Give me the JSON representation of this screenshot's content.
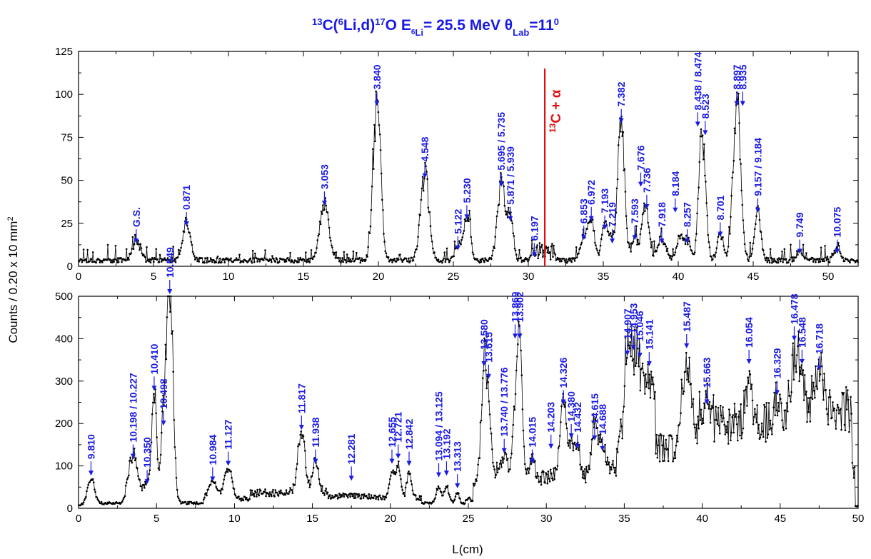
{
  "colors": {
    "title": "#1a1ae6",
    "labels": "#1a1ae6",
    "threshold": "#e01010",
    "data": "#000000"
  },
  "title": {
    "sup1": "13",
    "p1": "C(",
    "sup2": "6",
    "p2": "Li,d)",
    "sup3": "17",
    "p3": "O  E",
    "sub1": "6",
    "sub2": "Li",
    "p4": "= 25.5 MeV  θ",
    "sub3": "Lab",
    "p5": "=11",
    "sup4": "0"
  },
  "ylabel": {
    "main": "Counts / 0.20 x 10 mm",
    "sup": "2"
  },
  "xlabel": "L(cm)",
  "threshold": {
    "label_sup": "13",
    "label_main": "C + α",
    "x": 31.1
  },
  "chart_data": [
    {
      "type": "line",
      "panel": "top",
      "xlim": [
        0,
        52
      ],
      "ylim": [
        0,
        125
      ],
      "xticks": [
        "0",
        "5",
        "10",
        "15",
        "20",
        "25",
        "30",
        "35",
        "40",
        "45",
        "50"
      ],
      "yticks": [
        "0",
        "25",
        "50",
        "75",
        "100",
        "125"
      ],
      "baseline": 2,
      "peaks": [
        {
          "x": 3.85,
          "h": 12,
          "w": 0.25
        },
        {
          "x": 7.2,
          "h": 22,
          "w": 0.25
        },
        {
          "x": 16.4,
          "h": 33,
          "w": 0.3
        },
        {
          "x": 19.9,
          "h": 92,
          "w": 0.25
        },
        {
          "x": 23.1,
          "h": 50,
          "w": 0.28
        },
        {
          "x": 25.3,
          "h": 8,
          "w": 0.2
        },
        {
          "x": 25.9,
          "h": 26,
          "w": 0.22
        },
        {
          "x": 28.2,
          "h": 45,
          "w": 0.26
        },
        {
          "x": 28.8,
          "h": 25,
          "w": 0.2
        },
        {
          "x": 30.4,
          "h": 4,
          "w": 0.2
        },
        {
          "x": 33.7,
          "h": 14,
          "w": 0.22
        },
        {
          "x": 34.2,
          "h": 25,
          "w": 0.2
        },
        {
          "x": 35.1,
          "h": 20,
          "w": 0.2
        },
        {
          "x": 35.6,
          "h": 12,
          "w": 0.2
        },
        {
          "x": 36.2,
          "h": 82,
          "w": 0.22
        },
        {
          "x": 37.1,
          "h": 14,
          "w": 0.2
        },
        {
          "x": 37.8,
          "h": 32,
          "w": 0.22
        },
        {
          "x": 38.9,
          "h": 12,
          "w": 0.3
        },
        {
          "x": 40.1,
          "h": 15,
          "w": 0.2
        },
        {
          "x": 40.6,
          "h": 12,
          "w": 0.2
        },
        {
          "x": 41.6,
          "h": 75,
          "w": 0.22
        },
        {
          "x": 42.8,
          "h": 16,
          "w": 0.2
        },
        {
          "x": 43.9,
          "h": 92,
          "w": 0.25
        },
        {
          "x": 45.3,
          "h": 30,
          "w": 0.2
        },
        {
          "x": 48.1,
          "h": 6,
          "w": 0.2
        },
        {
          "x": 50.6,
          "h": 6,
          "w": 0.2
        }
      ],
      "annotations": [
        {
          "text": "G.S.",
          "x": 3.85,
          "y": 12
        },
        {
          "text": "0.871",
          "x": 7.2,
          "y": 22
        },
        {
          "text": "3.053",
          "x": 16.4,
          "y": 34
        },
        {
          "text": "3.840",
          "x": 19.9,
          "y": 92
        },
        {
          "text": "4.548",
          "x": 23.1,
          "y": 50
        },
        {
          "text": "5.122",
          "x": 25.3,
          "y": 8
        },
        {
          "text": "5.230",
          "x": 25.9,
          "y": 26
        },
        {
          "text": "5.695 / 5.735",
          "x": 28.2,
          "y": 45
        },
        {
          "text": "5.871 / 5.939",
          "x": 28.8,
          "y": 25
        },
        {
          "text": "6.197",
          "x": 30.4,
          "y": 4
        },
        {
          "text": "6.853",
          "x": 33.7,
          "y": 14
        },
        {
          "text": "6.972",
          "x": 34.2,
          "y": 25
        },
        {
          "text": "7.193",
          "x": 35.1,
          "y": 20
        },
        {
          "text": "7.219",
          "x": 35.6,
          "y": 12
        },
        {
          "text": "7.382",
          "x": 36.2,
          "y": 82
        },
        {
          "text": "7.593",
          "x": 37.1,
          "y": 14
        },
        {
          "text": "7.676",
          "x": 37.5,
          "y": 45
        },
        {
          "text": "7.736",
          "x": 37.9,
          "y": 32
        },
        {
          "text": "7.918",
          "x": 38.9,
          "y": 12
        },
        {
          "text": "8.184",
          "x": 39.8,
          "y": 30
        },
        {
          "text": "8.257",
          "x": 40.6,
          "y": 12
        },
        {
          "text": "8.438 / 8.474",
          "x": 41.3,
          "y": 80
        },
        {
          "text": "8.523",
          "x": 41.8,
          "y": 75
        },
        {
          "text": "8.701",
          "x": 42.8,
          "y": 16
        },
        {
          "text": "8.897",
          "x": 43.9,
          "y": 92
        },
        {
          "text": "8.935",
          "x": 44.3,
          "y": 92
        },
        {
          "text": "9.157 / 9.184",
          "x": 45.3,
          "y": 30
        },
        {
          "text": "9.749",
          "x": 48.1,
          "y": 6
        },
        {
          "text": "10.075",
          "x": 50.6,
          "y": 6
        }
      ]
    },
    {
      "type": "line",
      "panel": "bottom",
      "xlim": [
        0,
        50
      ],
      "ylim": [
        0,
        500
      ],
      "xticks": [
        "0",
        "5",
        "10",
        "15",
        "20",
        "25",
        "30",
        "35",
        "40",
        "45",
        "50"
      ],
      "yticks": [
        "0",
        "100",
        "200",
        "300",
        "400",
        "500"
      ],
      "peaks": [
        {
          "x": 0.8,
          "h": 58,
          "w": 0.22
        },
        {
          "x": 3.5,
          "h": 90,
          "w": 0.28
        },
        {
          "x": 4.4,
          "h": 25,
          "w": 0.15
        },
        {
          "x": 4.85,
          "h": 255,
          "w": 0.15
        },
        {
          "x": 5.45,
          "h": 160,
          "w": 0.15
        },
        {
          "x": 5.85,
          "h": 520,
          "w": 0.2
        },
        {
          "x": 8.6,
          "h": 40,
          "w": 0.25
        },
        {
          "x": 9.6,
          "h": 70,
          "w": 0.25
        },
        {
          "x": 14.3,
          "h": 150,
          "w": 0.22
        },
        {
          "x": 15.2,
          "h": 65,
          "w": 0.2
        },
        {
          "x": 20.1,
          "h": 60,
          "w": 0.15
        },
        {
          "x": 20.5,
          "h": 80,
          "w": 0.15
        },
        {
          "x": 21.2,
          "h": 55,
          "w": 0.15
        },
        {
          "x": 23.1,
          "h": 40,
          "w": 0.15
        },
        {
          "x": 23.6,
          "h": 40,
          "w": 0.15
        },
        {
          "x": 24.3,
          "h": 25,
          "w": 0.12
        },
        {
          "x": 26.0,
          "h": 250,
          "w": 0.18
        },
        {
          "x": 26.3,
          "h": 130,
          "w": 0.15
        },
        {
          "x": 27.3,
          "h": 50,
          "w": 0.25
        },
        {
          "x": 28.0,
          "h": 150,
          "w": 0.15
        },
        {
          "x": 28.3,
          "h": 330,
          "w": 0.15
        },
        {
          "x": 29.1,
          "h": 40,
          "w": 0.2
        },
        {
          "x": 31.1,
          "h": 180,
          "w": 0.2
        },
        {
          "x": 31.6,
          "h": 70,
          "w": 0.15
        },
        {
          "x": 32.0,
          "h": 80,
          "w": 0.15
        },
        {
          "x": 33.1,
          "h": 110,
          "w": 0.2
        },
        {
          "x": 33.6,
          "h": 70,
          "w": 0.15
        },
        {
          "x": 35.2,
          "h": 140,
          "w": 0.2
        },
        {
          "x": 35.6,
          "h": 130,
          "w": 0.25
        },
        {
          "x": 36.0,
          "h": 90,
          "w": 0.2
        },
        {
          "x": 36.6,
          "h": 100,
          "w": 0.2
        },
        {
          "x": 39.0,
          "h": 170,
          "w": 0.25
        },
        {
          "x": 40.3,
          "h": 50,
          "w": 0.2
        },
        {
          "x": 43.0,
          "h": 100,
          "w": 0.2
        },
        {
          "x": 44.8,
          "h": 40,
          "w": 0.2
        },
        {
          "x": 45.9,
          "h": 140,
          "w": 0.2
        },
        {
          "x": 46.4,
          "h": 60,
          "w": 0.2
        },
        {
          "x": 47.5,
          "h": 80,
          "w": 0.25
        }
      ],
      "annotations": [
        {
          "text": "9.810",
          "x": 0.8,
          "y": 72
        },
        {
          "text": "10.198 / 10.227",
          "x": 3.5,
          "y": 112
        },
        {
          "text": "10.350",
          "x": 4.4,
          "y": 52
        },
        {
          "text": "10.410",
          "x": 4.85,
          "y": 272
        },
        {
          "text": "10.498",
          "x": 5.45,
          "y": 190
        },
        {
          "text": "10.549",
          "x": 5.85,
          "y": 500
        },
        {
          "text": "10.984",
          "x": 8.6,
          "y": 58
        },
        {
          "text": "11.127",
          "x": 9.6,
          "y": 95
        },
        {
          "text": "11.817",
          "x": 14.3,
          "y": 180
        },
        {
          "text": "11.938",
          "x": 15.2,
          "y": 100
        },
        {
          "text": "12.281",
          "x": 17.5,
          "y": 60
        },
        {
          "text": "12.655",
          "x": 20.1,
          "y": 100
        },
        {
          "text": "12.721",
          "x": 20.5,
          "y": 112
        },
        {
          "text": "12.842",
          "x": 21.2,
          "y": 95
        },
        {
          "text": "13.094 / 13.125",
          "x": 23.1,
          "y": 68
        },
        {
          "text": "13.192",
          "x": 23.6,
          "y": 72
        },
        {
          "text": "13.313",
          "x": 24.3,
          "y": 42
        },
        {
          "text": "13.580",
          "x": 26.0,
          "y": 330
        },
        {
          "text": "13.615",
          "x": 26.3,
          "y": 300
        },
        {
          "text": "13.740 / 13.776",
          "x": 27.3,
          "y": 125
        },
        {
          "text": "13.869",
          "x": 28.0,
          "y": 395
        },
        {
          "text": "13.902",
          "x": 28.3,
          "y": 395
        },
        {
          "text": "14.015",
          "x": 29.1,
          "y": 100
        },
        {
          "text": "14.203",
          "x": 30.3,
          "y": 135
        },
        {
          "text": "14.326",
          "x": 31.1,
          "y": 240
        },
        {
          "text": "14.380",
          "x": 31.6,
          "y": 160
        },
        {
          "text": "14.432",
          "x": 32.0,
          "y": 135
        },
        {
          "text": "14.615",
          "x": 33.1,
          "y": 155
        },
        {
          "text": "14.688",
          "x": 33.6,
          "y": 130
        },
        {
          "text": "14.907",
          "x": 35.2,
          "y": 355
        },
        {
          "text": "14.953",
          "x": 35.6,
          "y": 368
        },
        {
          "text": "15.046",
          "x": 36.0,
          "y": 350
        },
        {
          "text": "15.141",
          "x": 36.6,
          "y": 330
        },
        {
          "text": "15.487",
          "x": 39.0,
          "y": 372
        },
        {
          "text": "15.663",
          "x": 40.3,
          "y": 240
        },
        {
          "text": "16.054",
          "x": 43.0,
          "y": 335
        },
        {
          "text": "16.329",
          "x": 44.8,
          "y": 262
        },
        {
          "text": "16.478",
          "x": 45.9,
          "y": 390
        },
        {
          "text": "16.548",
          "x": 46.4,
          "y": 335
        },
        {
          "text": "16.718",
          "x": 47.5,
          "y": 320
        }
      ]
    }
  ]
}
